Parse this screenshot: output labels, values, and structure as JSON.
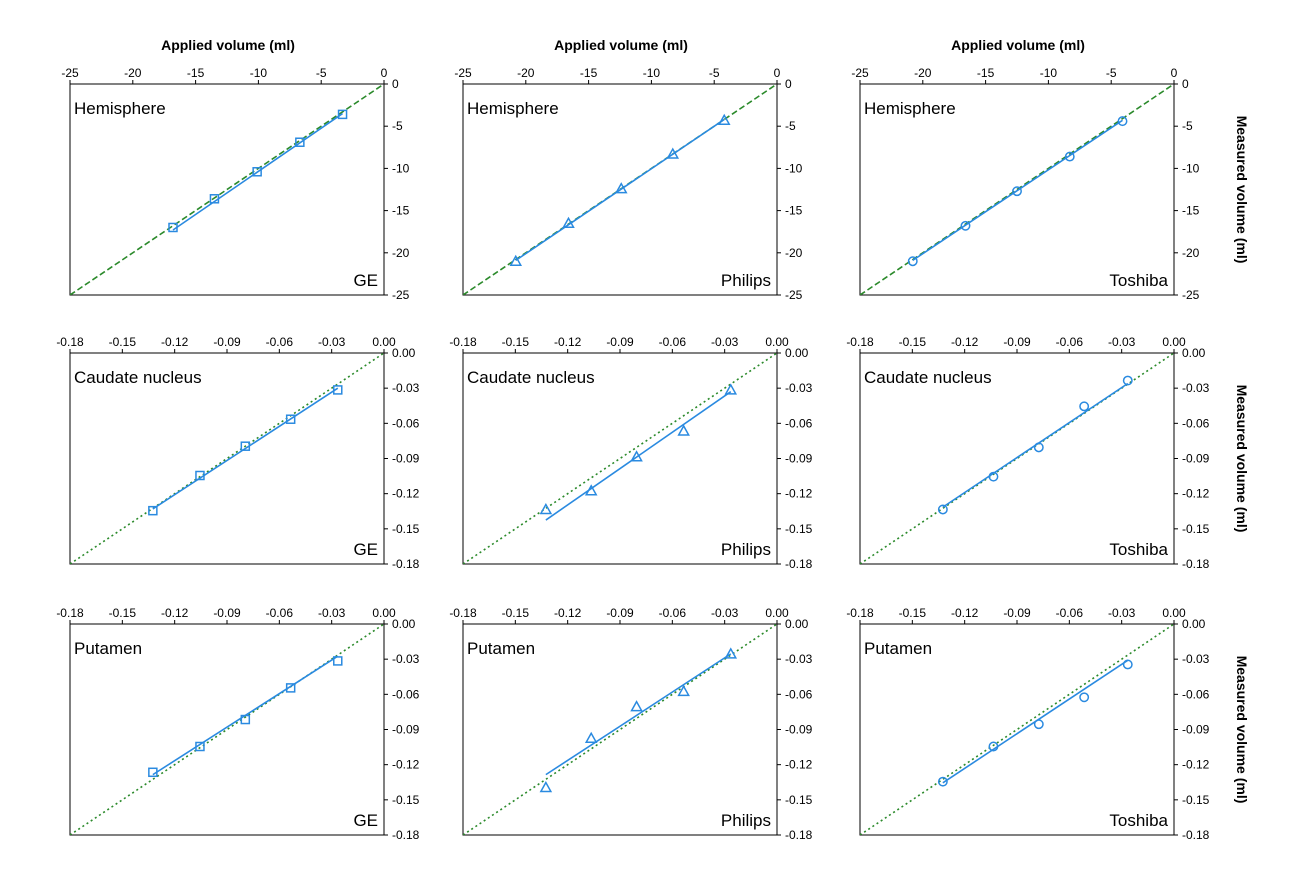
{
  "colors": {
    "data": "#2a8ae0",
    "identity": "#2b8a2b",
    "axis": "#000000"
  },
  "chart_data": [
    {
      "type": "scatter",
      "region": "Hemisphere",
      "vendor": "GE",
      "marker": "square",
      "xlim": [
        -25,
        0
      ],
      "ylim": [
        -25,
        0
      ],
      "xticks": [
        "-25",
        "-20",
        "-15",
        "-10",
        "-5",
        "0"
      ],
      "yticks": [
        "0",
        "-5",
        "-10",
        "-15",
        "-20",
        "-25"
      ],
      "xtick_values": [
        -25,
        -20,
        -15,
        -10,
        -5,
        0
      ],
      "ytick_values": [
        0,
        -5,
        -10,
        -15,
        -20,
        -25
      ],
      "xlabel": "Applied volume (ml)",
      "ylabel": "",
      "identity_style": "dashed",
      "points": [
        [
          -16.8,
          -17.0
        ],
        [
          -13.5,
          -13.6
        ],
        [
          -10.1,
          -10.4
        ],
        [
          -6.7,
          -6.9
        ],
        [
          -3.3,
          -3.6
        ]
      ],
      "fit": [
        [
          -16.8,
          -17.3
        ],
        [
          -3.3,
          -3.5
        ]
      ]
    },
    {
      "type": "scatter",
      "region": "Hemisphere",
      "vendor": "Philips",
      "marker": "triangle",
      "xlim": [
        -25,
        0
      ],
      "ylim": [
        -25,
        0
      ],
      "xticks": [
        "-25",
        "-20",
        "-15",
        "-10",
        "-5",
        "0"
      ],
      "yticks": [
        "0",
        "-5",
        "-10",
        "-15",
        "-20",
        "-25"
      ],
      "xtick_values": [
        -25,
        -20,
        -15,
        -10,
        -5,
        0
      ],
      "ytick_values": [
        0,
        -5,
        -10,
        -15,
        -20,
        -25
      ],
      "xlabel": "Applied volume (ml)",
      "ylabel": "",
      "identity_style": "dashed",
      "points": [
        [
          -20.8,
          -21.0
        ],
        [
          -16.6,
          -16.5
        ],
        [
          -12.4,
          -12.4
        ],
        [
          -8.3,
          -8.3
        ],
        [
          -4.2,
          -4.3
        ]
      ],
      "fit": [
        [
          -20.8,
          -20.9
        ],
        [
          -4.2,
          -4.2
        ]
      ]
    },
    {
      "type": "scatter",
      "region": "Hemisphere",
      "vendor": "Toshiba",
      "marker": "circle",
      "xlim": [
        -25,
        0
      ],
      "ylim": [
        -25,
        0
      ],
      "xticks": [
        "-25",
        "-20",
        "-15",
        "-10",
        "-5",
        "0"
      ],
      "yticks": [
        "0",
        "-5",
        "-10",
        "-15",
        "-20",
        "-25"
      ],
      "xtick_values": [
        -25,
        -20,
        -15,
        -10,
        -5,
        0
      ],
      "ytick_values": [
        0,
        -5,
        -10,
        -15,
        -20,
        -25
      ],
      "xlabel": "Applied volume (ml)",
      "ylabel": "Measured volume (ml)",
      "identity_style": "dashed",
      "points": [
        [
          -20.8,
          -21.0
        ],
        [
          -16.6,
          -16.8
        ],
        [
          -12.5,
          -12.7
        ],
        [
          -8.3,
          -8.6
        ],
        [
          -4.1,
          -4.4
        ]
      ],
      "fit": [
        [
          -20.8,
          -20.9
        ],
        [
          -4.1,
          -4.3
        ]
      ]
    },
    {
      "type": "scatter",
      "region": "Caudate nucleus",
      "vendor": "GE",
      "marker": "square",
      "xlim": [
        -0.18,
        0
      ],
      "ylim": [
        -0.18,
        0
      ],
      "xticks": [
        "-0.18",
        "-0.15",
        "-0.12",
        "-0.09",
        "-0.06",
        "-0.03",
        "0.00"
      ],
      "yticks": [
        "0.00",
        "-0.03",
        "-0.06",
        "-0.09",
        "-0.12",
        "-0.15",
        "-0.18"
      ],
      "xtick_values": [
        -0.18,
        -0.15,
        -0.12,
        -0.09,
        -0.06,
        -0.03,
        0
      ],
      "ytick_values": [
        0,
        -0.03,
        -0.06,
        -0.09,
        -0.12,
        -0.15,
        -0.18
      ],
      "xlabel": "",
      "ylabel": "",
      "identity_style": "dotted",
      "points": [
        [
          -0.1325,
          -0.1345
        ],
        [
          -0.1055,
          -0.1045
        ],
        [
          -0.0795,
          -0.0795
        ],
        [
          -0.0535,
          -0.0565
        ],
        [
          -0.0265,
          -0.0315
        ]
      ],
      "fit": [
        [
          -0.1325,
          -0.133
        ],
        [
          -0.0265,
          -0.03
        ]
      ]
    },
    {
      "type": "scatter",
      "region": "Caudate nucleus",
      "vendor": "Philips",
      "marker": "triangle",
      "xlim": [
        -0.18,
        0
      ],
      "ylim": [
        -0.18,
        0
      ],
      "xticks": [
        "-0.18",
        "-0.15",
        "-0.12",
        "-0.09",
        "-0.06",
        "-0.03",
        "0.00"
      ],
      "yticks": [
        "0.00",
        "-0.03",
        "-0.06",
        "-0.09",
        "-0.12",
        "-0.15",
        "-0.18"
      ],
      "xtick_values": [
        -0.18,
        -0.15,
        -0.12,
        -0.09,
        -0.06,
        -0.03,
        0
      ],
      "ytick_values": [
        0,
        -0.03,
        -0.06,
        -0.09,
        -0.12,
        -0.15,
        -0.18
      ],
      "xlabel": "",
      "ylabel": "",
      "identity_style": "dotted",
      "points": [
        [
          -0.1325,
          -0.1335
        ],
        [
          -0.1065,
          -0.1175
        ],
        [
          -0.0805,
          -0.0885
        ],
        [
          -0.0535,
          -0.0665
        ],
        [
          -0.0265,
          -0.0315
        ]
      ],
      "fit": [
        [
          -0.1325,
          -0.1425
        ],
        [
          -0.0265,
          -0.033
        ]
      ]
    },
    {
      "type": "scatter",
      "region": "Caudate nucleus",
      "vendor": "Toshiba",
      "marker": "circle",
      "xlim": [
        -0.18,
        0
      ],
      "ylim": [
        -0.18,
        0
      ],
      "xticks": [
        "-0.18",
        "-0.15",
        "-0.12",
        "-0.09",
        "-0.06",
        "-0.03",
        "0.00"
      ],
      "yticks": [
        "0.00",
        "-0.03",
        "-0.06",
        "-0.09",
        "-0.12",
        "-0.15",
        "-0.18"
      ],
      "xtick_values": [
        -0.18,
        -0.15,
        -0.12,
        -0.09,
        -0.06,
        -0.03,
        0
      ],
      "ytick_values": [
        0,
        -0.03,
        -0.06,
        -0.09,
        -0.12,
        -0.15,
        -0.18
      ],
      "xlabel": "",
      "ylabel": "Measured volume (ml)",
      "identity_style": "dotted",
      "points": [
        [
          -0.1325,
          -0.1335
        ],
        [
          -0.1035,
          -0.1055
        ],
        [
          -0.0775,
          -0.0805
        ],
        [
          -0.0515,
          -0.0455
        ],
        [
          -0.0265,
          -0.0235
        ]
      ],
      "fit": [
        [
          -0.1325,
          -0.1315
        ],
        [
          -0.0265,
          -0.026
        ]
      ]
    },
    {
      "type": "scatter",
      "region": "Putamen",
      "vendor": "GE",
      "marker": "square",
      "xlim": [
        -0.18,
        0
      ],
      "ylim": [
        -0.18,
        0
      ],
      "xticks": [
        "-0.18",
        "-0.15",
        "-0.12",
        "-0.09",
        "-0.06",
        "-0.03",
        "0.00"
      ],
      "yticks": [
        "0.00",
        "-0.03",
        "-0.06",
        "-0.09",
        "-0.12",
        "-0.15",
        "-0.18"
      ],
      "xtick_values": [
        -0.18,
        -0.15,
        -0.12,
        -0.09,
        -0.06,
        -0.03,
        0
      ],
      "ytick_values": [
        0,
        -0.03,
        -0.06,
        -0.09,
        -0.12,
        -0.15,
        -0.18
      ],
      "xlabel": "",
      "ylabel": "",
      "identity_style": "dotted",
      "points": [
        [
          -0.1325,
          -0.1265
        ],
        [
          -0.1055,
          -0.1045
        ],
        [
          -0.0795,
          -0.0815
        ],
        [
          -0.0535,
          -0.0545
        ],
        [
          -0.0265,
          -0.0315
        ]
      ],
      "fit": [
        [
          -0.1325,
          -0.1285
        ],
        [
          -0.0265,
          -0.0275
        ]
      ]
    },
    {
      "type": "scatter",
      "region": "Putamen",
      "vendor": "Philips",
      "marker": "triangle",
      "xlim": [
        -0.18,
        0
      ],
      "ylim": [
        -0.18,
        0
      ],
      "xticks": [
        "-0.18",
        "-0.15",
        "-0.12",
        "-0.09",
        "-0.06",
        "-0.03",
        "0.00"
      ],
      "yticks": [
        "0.00",
        "-0.03",
        "-0.06",
        "-0.09",
        "-0.12",
        "-0.15",
        "-0.18"
      ],
      "xtick_values": [
        -0.18,
        -0.15,
        -0.12,
        -0.09,
        -0.06,
        -0.03,
        0
      ],
      "ytick_values": [
        0,
        -0.03,
        -0.06,
        -0.09,
        -0.12,
        -0.15,
        -0.18
      ],
      "xlabel": "",
      "ylabel": "",
      "identity_style": "dotted",
      "points": [
        [
          -0.1325,
          -0.1395
        ],
        [
          -0.1065,
          -0.0975
        ],
        [
          -0.0805,
          -0.0705
        ],
        [
          -0.0535,
          -0.0575
        ],
        [
          -0.0265,
          -0.0255
        ]
      ],
      "fit": [
        [
          -0.1325,
          -0.1285
        ],
        [
          -0.0265,
          -0.0255
        ]
      ]
    },
    {
      "type": "scatter",
      "region": "Putamen",
      "vendor": "Toshiba",
      "marker": "circle",
      "xlim": [
        -0.18,
        0
      ],
      "ylim": [
        -0.18,
        0
      ],
      "xticks": [
        "-0.18",
        "-0.15",
        "-0.12",
        "-0.09",
        "-0.06",
        "-0.03",
        "0.00"
      ],
      "yticks": [
        "0.00",
        "-0.03",
        "-0.06",
        "-0.09",
        "-0.12",
        "-0.15",
        "-0.18"
      ],
      "xtick_values": [
        -0.18,
        -0.15,
        -0.12,
        -0.09,
        -0.06,
        -0.03,
        0
      ],
      "ytick_values": [
        0,
        -0.03,
        -0.06,
        -0.09,
        -0.12,
        -0.15,
        -0.18
      ],
      "xlabel": "",
      "ylabel": "Measured volume (ml)",
      "identity_style": "dotted",
      "points": [
        [
          -0.1325,
          -0.1345
        ],
        [
          -0.1035,
          -0.1045
        ],
        [
          -0.0775,
          -0.0855
        ],
        [
          -0.0515,
          -0.0625
        ],
        [
          -0.0265,
          -0.0345
        ]
      ],
      "fit": [
        [
          -0.1325,
          -0.1355
        ],
        [
          -0.0265,
          -0.031
        ]
      ]
    }
  ]
}
